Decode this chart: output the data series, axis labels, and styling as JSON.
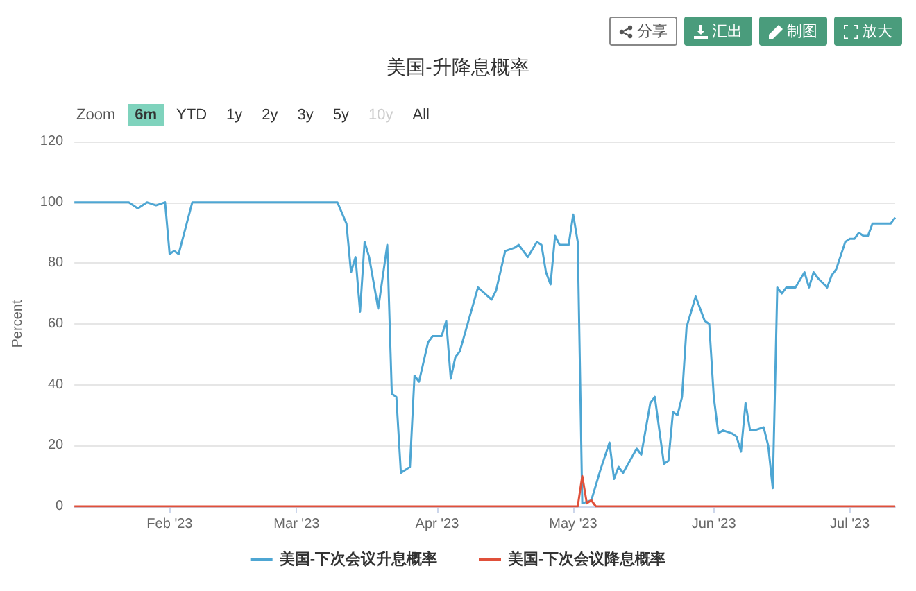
{
  "chart_data": {
    "type": "line",
    "title": "美国-升降息概率",
    "ylabel": "Percent",
    "annotations": [
      "分享",
      "汇出",
      "制图",
      "放大",
      "Zoom",
      "6m",
      "YTD",
      "1y",
      "2y",
      "3y",
      "5y",
      "10y",
      "All"
    ],
    "xlim": [
      "2023-01-11",
      "2023-07-11"
    ],
    "xticks": [
      {
        "value": "2023-02-01",
        "label": "Feb '23"
      },
      {
        "value": "2023-03-01",
        "label": "Mar '23"
      },
      {
        "value": "2023-04-01",
        "label": "Apr '23"
      },
      {
        "value": "2023-05-01",
        "label": "May '23"
      },
      {
        "value": "2023-06-01",
        "label": "Jun '23"
      },
      {
        "value": "2023-07-01",
        "label": "Jul '23"
      }
    ],
    "ylim": [
      0,
      120
    ],
    "yticks": [
      0,
      20,
      40,
      60,
      80,
      100,
      120
    ],
    "grid": "y",
    "legend": "bottom",
    "marker": "none",
    "line_style": "solid",
    "series": [
      {
        "name": "美国-下次会议升息概率",
        "color": "#4ea6d3",
        "x": [
          "2023-01-11",
          "2023-01-23",
          "2023-01-25",
          "2023-01-27",
          "2023-01-29",
          "2023-01-31",
          "2023-02-01",
          "2023-02-02",
          "2023-02-03",
          "2023-02-06",
          "2023-03-10",
          "2023-03-12",
          "2023-03-13",
          "2023-03-14",
          "2023-03-15",
          "2023-03-16",
          "2023-03-17",
          "2023-03-19",
          "2023-03-21",
          "2023-03-22",
          "2023-03-23",
          "2023-03-24",
          "2023-03-26",
          "2023-03-27",
          "2023-03-28",
          "2023-03-30",
          "2023-03-31",
          "2023-04-02",
          "2023-04-03",
          "2023-04-04",
          "2023-04-05",
          "2023-04-06",
          "2023-04-10",
          "2023-04-13",
          "2023-04-14",
          "2023-04-16",
          "2023-04-18",
          "2023-04-19",
          "2023-04-21",
          "2023-04-23",
          "2023-04-24",
          "2023-04-25",
          "2023-04-26",
          "2023-04-27",
          "2023-04-28",
          "2023-04-30",
          "2023-05-01",
          "2023-05-02",
          "2023-05-03",
          "2023-05-05",
          "2023-05-07",
          "2023-05-09",
          "2023-05-10",
          "2023-05-11",
          "2023-05-12",
          "2023-05-15",
          "2023-05-16",
          "2023-05-18",
          "2023-05-19",
          "2023-05-21",
          "2023-05-22",
          "2023-05-23",
          "2023-05-24",
          "2023-05-25",
          "2023-05-26",
          "2023-05-28",
          "2023-05-30",
          "2023-05-31",
          "2023-06-01",
          "2023-06-02",
          "2023-06-03",
          "2023-06-05",
          "2023-06-06",
          "2023-06-07",
          "2023-06-08",
          "2023-06-09",
          "2023-06-10",
          "2023-06-12",
          "2023-06-13",
          "2023-06-14",
          "2023-06-15",
          "2023-06-16",
          "2023-06-17",
          "2023-06-19",
          "2023-06-21",
          "2023-06-22",
          "2023-06-23",
          "2023-06-24",
          "2023-06-26",
          "2023-06-27",
          "2023-06-28",
          "2023-06-30",
          "2023-07-01",
          "2023-07-02",
          "2023-07-03",
          "2023-07-04",
          "2023-07-05",
          "2023-07-06",
          "2023-07-10",
          "2023-07-11"
        ],
        "values": [
          100,
          100,
          98,
          100,
          99,
          100,
          83,
          84,
          83,
          100,
          100,
          93,
          77,
          82,
          64,
          87,
          82,
          65,
          86,
          37,
          36,
          11,
          13,
          43,
          41,
          54,
          56,
          56,
          61,
          42,
          49,
          51,
          72,
          68,
          71,
          84,
          85,
          86,
          82,
          87,
          86,
          77,
          73,
          89,
          86,
          86,
          96,
          87,
          1,
          2,
          12,
          21,
          9,
          13,
          11,
          19,
          17,
          34,
          36,
          14,
          15,
          31,
          30,
          36,
          59,
          69,
          61,
          60,
          36,
          24,
          25,
          24,
          23,
          18,
          34,
          25,
          25,
          26,
          20,
          6,
          72,
          70,
          72,
          72,
          77,
          72,
          77,
          75,
          72,
          76,
          78,
          87,
          88,
          88,
          90,
          89,
          89,
          93,
          93,
          95
        ]
      },
      {
        "name": "美国-下次会议降息概率",
        "color": "#e0503a",
        "x": [
          "2023-01-11",
          "2023-05-02",
          "2023-05-03",
          "2023-05-04",
          "2023-05-05",
          "2023-05-06",
          "2023-07-11"
        ],
        "values": [
          0,
          0,
          10,
          1,
          2,
          0,
          0
        ]
      }
    ]
  }
}
